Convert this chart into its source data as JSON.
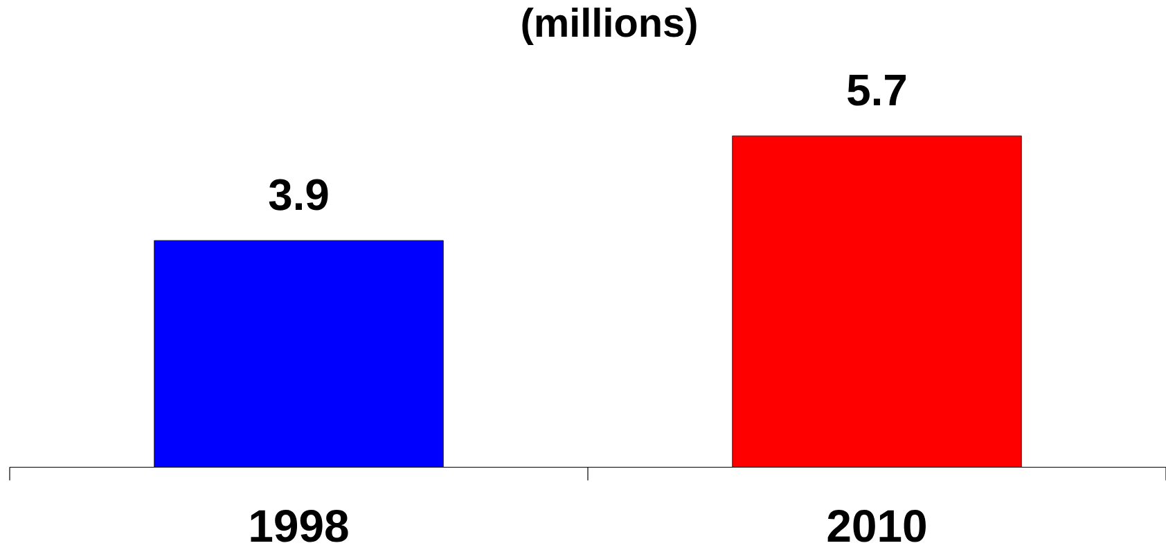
{
  "chart_data": {
    "type": "bar",
    "title": "(millions)",
    "categories": [
      "1998",
      "2010"
    ],
    "values": [
      3.9,
      5.7
    ],
    "colors": [
      "#0000ff",
      "#ff0000"
    ],
    "data_labels": true
  }
}
